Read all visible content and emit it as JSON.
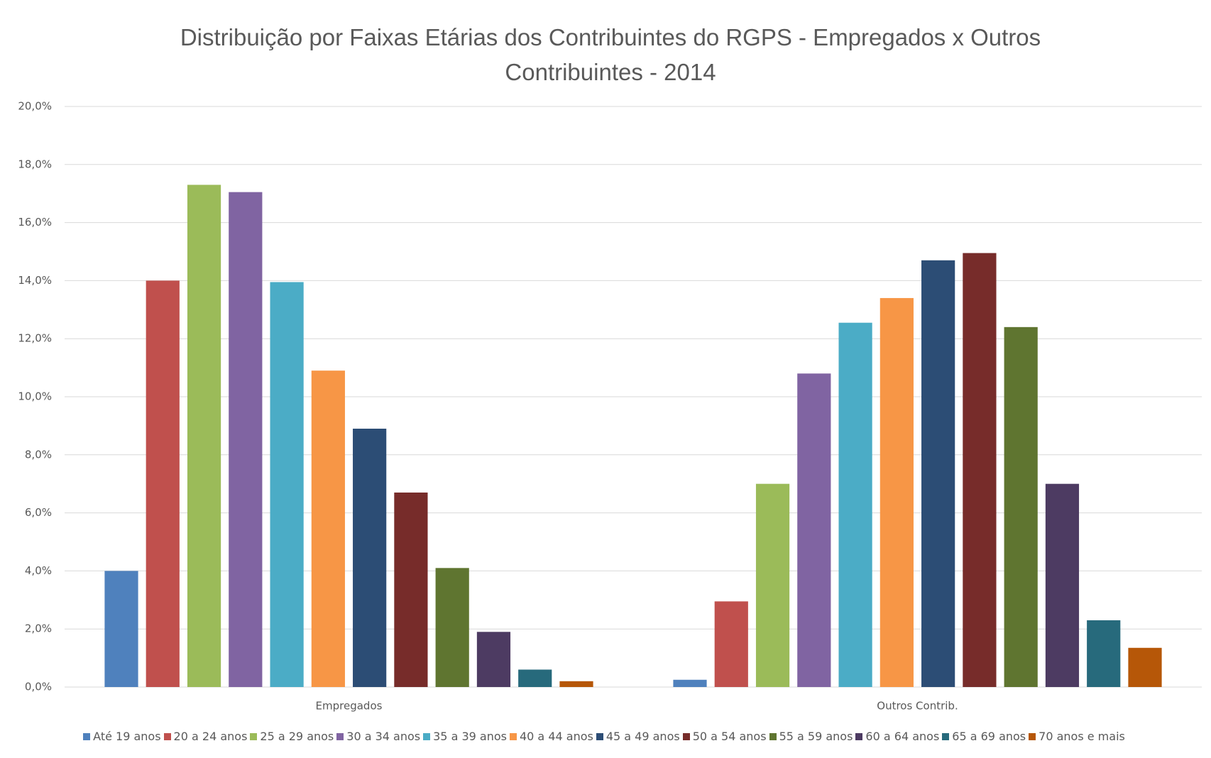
{
  "chart_data": {
    "type": "bar",
    "title": "Distribuição por Faixas Etárias dos Contribuintes do RGPS - Empregados x Outros Contribuintes - 2014",
    "categories": [
      "Empregados",
      "Outros Contrib."
    ],
    "series": [
      {
        "name": "Até 19 anos",
        "color": "#4f81bd",
        "values": [
          4.0,
          0.25
        ]
      },
      {
        "name": "20 a 24 anos",
        "color": "#c0504d",
        "values": [
          14.0,
          2.95
        ]
      },
      {
        "name": "25 a 29 anos",
        "color": "#9bbb59",
        "values": [
          17.3,
          7.0
        ]
      },
      {
        "name": "30 a 34 anos",
        "color": "#8064a2",
        "values": [
          17.05,
          10.8
        ]
      },
      {
        "name": "35 a 39 anos",
        "color": "#4bacc6",
        "values": [
          13.95,
          12.55
        ]
      },
      {
        "name": "40 a 44 anos",
        "color": "#f79646",
        "values": [
          10.9,
          13.4
        ]
      },
      {
        "name": "45 a 49 anos",
        "color": "#2c4d75",
        "values": [
          8.9,
          14.7
        ]
      },
      {
        "name": "50 a 54 anos",
        "color": "#772c2a",
        "values": [
          6.7,
          14.95
        ]
      },
      {
        "name": "55 a 59 anos",
        "color": "#5f7530",
        "values": [
          4.1,
          12.4
        ]
      },
      {
        "name": "60 a 64 anos",
        "color": "#4d3b62",
        "values": [
          1.9,
          7.0
        ]
      },
      {
        "name": "65 a 69 anos",
        "color": "#276a7c",
        "values": [
          0.6,
          2.3
        ]
      },
      {
        "name": "70 anos e mais",
        "color": "#b65708",
        "values": [
          0.2,
          1.35
        ]
      }
    ],
    "ylim": [
      0,
      20
    ],
    "yticks": [
      {
        "value": 0,
        "label": "0,0%"
      },
      {
        "value": 2,
        "label": "2,0%"
      },
      {
        "value": 4,
        "label": "4,0%"
      },
      {
        "value": 6,
        "label": "6,0%"
      },
      {
        "value": 8,
        "label": "8,0%"
      },
      {
        "value": 10,
        "label": "10,0%"
      },
      {
        "value": 12,
        "label": "12,0%"
      },
      {
        "value": 14,
        "label": "14,0%"
      },
      {
        "value": 16,
        "label": "16,0%"
      },
      {
        "value": 18,
        "label": "18,0%"
      },
      {
        "value": 20,
        "label": "20,0%"
      }
    ],
    "grid": true,
    "legend": "bottom"
  }
}
